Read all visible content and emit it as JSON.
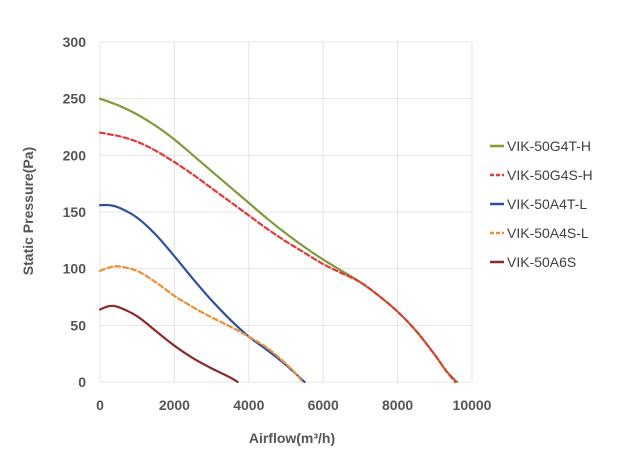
{
  "chart_data": {
    "type": "line",
    "title": "",
    "xlabel": "Airflow(m³/h)",
    "ylabel": "Static Pressure(Pa)",
    "xlim": [
      0,
      10000
    ],
    "ylim": [
      0,
      300
    ],
    "xticks": [
      0,
      2000,
      4000,
      6000,
      8000,
      10000
    ],
    "yticks": [
      0,
      50,
      100,
      150,
      200,
      250,
      300
    ],
    "grid": true,
    "legend_position": "right",
    "series": [
      {
        "name": "VIK-50G4T-H",
        "color": "#7f9b3c",
        "dash": "solid",
        "x": [
          0,
          500,
          1000,
          1500,
          2000,
          2500,
          3000,
          3500,
          4000,
          4500,
          5000,
          5500,
          6000,
          6500,
          7000,
          7500,
          8000,
          8500,
          9000,
          9300,
          9600
        ],
        "y": [
          250,
          244,
          236,
          226,
          214,
          200,
          186,
          172,
          158,
          144,
          131,
          119,
          108,
          98,
          88,
          76,
          62,
          45,
          24,
          10,
          0
        ]
      },
      {
        "name": "VIK-50G4S-H",
        "color": "#e03a3a",
        "dash": "dashed",
        "x": [
          0,
          500,
          1000,
          1500,
          2000,
          2500,
          3000,
          3500,
          4000,
          4500,
          5000,
          5500,
          6000,
          6500,
          7000,
          7500,
          8000,
          8500,
          9000,
          9300,
          9550
        ],
        "y": [
          220,
          217,
          212,
          204,
          194,
          183,
          171,
          159,
          147,
          135,
          124,
          114,
          104,
          96,
          88,
          76,
          62,
          45,
          24,
          10,
          0
        ]
      },
      {
        "name": "VIK-50A4T-L",
        "color": "#2f4f9e",
        "dash": "solid",
        "x": [
          0,
          250,
          500,
          1000,
          1500,
          2000,
          2500,
          3000,
          3500,
          4000,
          4500,
          5000,
          5300,
          5500
        ],
        "y": [
          156,
          156,
          154,
          145,
          130,
          111,
          91,
          72,
          55,
          40,
          28,
          15,
          6,
          0
        ]
      },
      {
        "name": "VIK-50A4S-L",
        "color": "#e8913a",
        "dash": "dashed",
        "x": [
          0,
          250,
          500,
          1000,
          1500,
          2000,
          2500,
          3000,
          3500,
          4000,
          4500,
          5000,
          5300,
          5450
        ],
        "y": [
          98,
          101,
          102,
          98,
          88,
          76,
          66,
          57,
          49,
          40,
          30,
          16,
          6,
          0
        ]
      },
      {
        "name": "VIK-50A6S",
        "color": "#8b2b2b",
        "dash": "solid",
        "x": [
          0,
          250,
          500,
          1000,
          1500,
          2000,
          2500,
          3000,
          3500,
          3700
        ],
        "y": [
          64,
          67,
          66,
          58,
          45,
          32,
          21,
          12,
          4,
          0
        ]
      }
    ]
  }
}
